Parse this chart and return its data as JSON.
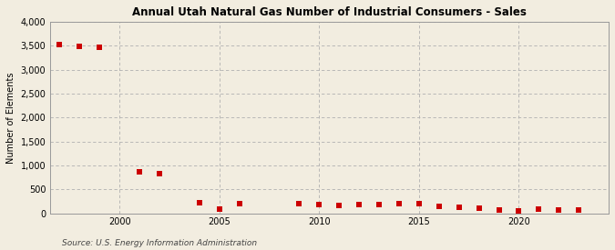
{
  "title": "Annual Utah Natural Gas Number of Industrial Consumers - Sales",
  "ylabel": "Number of Elements",
  "source": "Source: U.S. Energy Information Administration",
  "background_color": "#f2ede0",
  "plot_background_color": "#f2ede0",
  "marker_color": "#cc0000",
  "marker_size": 4,
  "marker_style": "s",
  "grid_color": "#b0b0b0",
  "ylim": [
    0,
    4000
  ],
  "yticks": [
    0,
    500,
    1000,
    1500,
    2000,
    2500,
    3000,
    3500,
    4000
  ],
  "xlim": [
    1996.5,
    2024.5
  ],
  "xticks": [
    2000,
    2005,
    2010,
    2015,
    2020
  ],
  "years": [
    1997,
    1998,
    1999,
    2001,
    2002,
    2004,
    2005,
    2006,
    2009,
    2010,
    2011,
    2012,
    2013,
    2014,
    2015,
    2016,
    2017,
    2018,
    2019,
    2020,
    2021,
    2022,
    2023
  ],
  "values": [
    3520,
    3490,
    3460,
    860,
    820,
    230,
    80,
    200,
    200,
    180,
    170,
    175,
    180,
    200,
    200,
    150,
    130,
    100,
    75,
    45,
    80,
    75,
    65
  ]
}
